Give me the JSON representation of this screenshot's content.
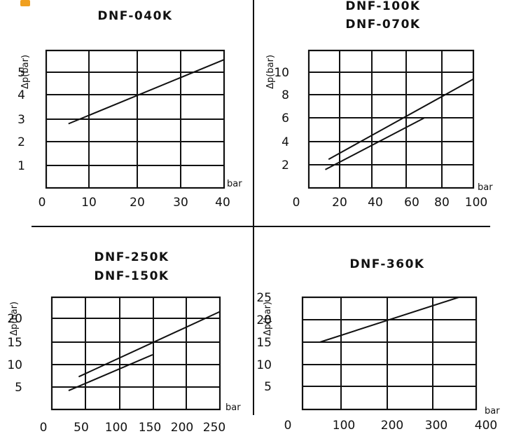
{
  "chart_data": [
    {
      "type": "line",
      "title": [
        "DNF-040K"
      ],
      "ylabel": "Δp(bar)",
      "xunit": "bar",
      "xlim": [
        0,
        40
      ],
      "ylim": [
        0,
        6
      ],
      "xticks": [
        "0",
        "10",
        "20",
        "30",
        "40"
      ],
      "yticks": [
        "1",
        "2",
        "3",
        "4",
        "5"
      ],
      "grid": true,
      "series": [
        {
          "x": [
            5,
            40
          ],
          "y": [
            2.8,
            5.6
          ]
        }
      ]
    },
    {
      "type": "line",
      "title": [
        "DNF-100K",
        "DNF-070K"
      ],
      "ylabel": "Δp(bar)",
      "xunit": "bar",
      "xlim": [
        0,
        100
      ],
      "ylim": [
        0,
        12
      ],
      "xticks": [
        "0",
        "20",
        "40",
        "60",
        "80",
        "100"
      ],
      "yticks": [
        "2",
        "4",
        "6",
        "8",
        "10"
      ],
      "grid": true,
      "series": [
        {
          "x": [
            12,
            100
          ],
          "y": [
            2.5,
            9.5
          ]
        },
        {
          "x": [
            10,
            70
          ],
          "y": [
            1.6,
            6.1
          ]
        }
      ]
    },
    {
      "type": "line",
      "title": [
        "DNF-250K",
        "DNF-150K"
      ],
      "ylabel": "Δp(bar)",
      "xunit": "bar",
      "xlim": [
        0,
        250
      ],
      "ylim": [
        0,
        25
      ],
      "xticks": [
        "0",
        "50",
        "100",
        "150",
        "200",
        "250"
      ],
      "yticks": [
        "5",
        "10",
        "15",
        "20"
      ],
      "grid": true,
      "series": [
        {
          "x": [
            40,
            250
          ],
          "y": [
            7.3,
            21.8
          ]
        },
        {
          "x": [
            25,
            150
          ],
          "y": [
            4.2,
            12.2
          ]
        }
      ]
    },
    {
      "type": "line",
      "title": [
        "DNF-360K"
      ],
      "ylabel": "Δp(bar)",
      "xunit": "bar",
      "xlim": [
        0,
        400
      ],
      "ylim": [
        0,
        25
      ],
      "xticks": [
        "0",
        "100",
        "200",
        "300",
        "400"
      ],
      "yticks": [
        "5",
        "10",
        "15",
        "20",
        "25"
      ],
      "grid": true,
      "series": [
        {
          "x": [
            40,
            360
          ],
          "y": [
            15.0,
            25.0
          ]
        }
      ]
    }
  ],
  "colors": {
    "ink": "#111111",
    "badge": "#f0a020"
  }
}
